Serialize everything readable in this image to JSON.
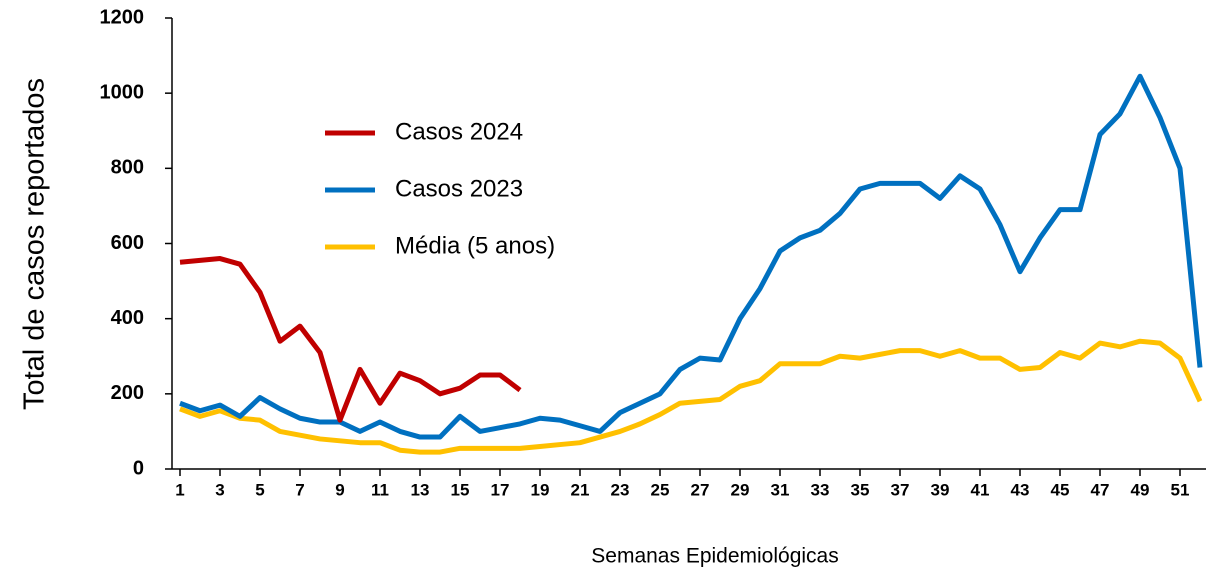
{
  "chart_data": {
    "type": "line",
    "xlabel": "Semanas Epidemiológicas",
    "ylabel": "Total de casos reportados",
    "x": [
      1,
      2,
      3,
      4,
      5,
      6,
      7,
      8,
      9,
      10,
      11,
      12,
      13,
      14,
      15,
      16,
      17,
      18,
      19,
      20,
      21,
      22,
      23,
      24,
      25,
      26,
      27,
      28,
      29,
      30,
      31,
      32,
      33,
      34,
      35,
      36,
      37,
      38,
      39,
      40,
      41,
      42,
      43,
      44,
      45,
      46,
      47,
      48,
      49,
      50,
      51,
      52
    ],
    "xlim": [
      0.6,
      52.3
    ],
    "xticks": [
      1,
      3,
      5,
      7,
      9,
      11,
      13,
      15,
      17,
      19,
      21,
      23,
      25,
      27,
      29,
      31,
      33,
      35,
      37,
      39,
      41,
      43,
      45,
      47,
      49,
      51
    ],
    "ylim": [
      0,
      1200
    ],
    "yticks": [
      0,
      200,
      400,
      600,
      800,
      1000,
      1200
    ],
    "legend": "upper-left",
    "series": [
      {
        "name": "Casos 2024",
        "color": "#c00000",
        "values": [
          550,
          555,
          560,
          545,
          470,
          340,
          380,
          310,
          130,
          265,
          175,
          255,
          235,
          200,
          215,
          250,
          250,
          210,
          null,
          null,
          null,
          null,
          null,
          null,
          null,
          null,
          null,
          null,
          null,
          null,
          null,
          null,
          null,
          null,
          null,
          null,
          null,
          null,
          null,
          null,
          null,
          null,
          null,
          null,
          null,
          null,
          null,
          null,
          null,
          null,
          null,
          null
        ]
      },
      {
        "name": "Casos 2023",
        "color": "#0070c0",
        "values": [
          175,
          155,
          170,
          140,
          190,
          160,
          135,
          125,
          125,
          100,
          125,
          100,
          85,
          85,
          140,
          100,
          110,
          120,
          135,
          130,
          115,
          100,
          150,
          175,
          200,
          265,
          295,
          290,
          400,
          480,
          580,
          615,
          635,
          680,
          745,
          760,
          760,
          760,
          720,
          780,
          745,
          650,
          525,
          615,
          690,
          690,
          890,
          945,
          1045,
          935,
          800,
          270
        ]
      },
      {
        "name": "Média (5 anos)",
        "color": "#ffc000",
        "values": [
          160,
          140,
          155,
          135,
          130,
          100,
          90,
          80,
          75,
          70,
          70,
          50,
          45,
          45,
          55,
          55,
          55,
          55,
          60,
          65,
          70,
          85,
          100,
          120,
          145,
          175,
          180,
          185,
          220,
          235,
          280,
          280,
          280,
          300,
          295,
          305,
          315,
          315,
          300,
          315,
          295,
          295,
          265,
          270,
          310,
          295,
          335,
          325,
          340,
          335,
          295,
          180
        ]
      }
    ]
  }
}
